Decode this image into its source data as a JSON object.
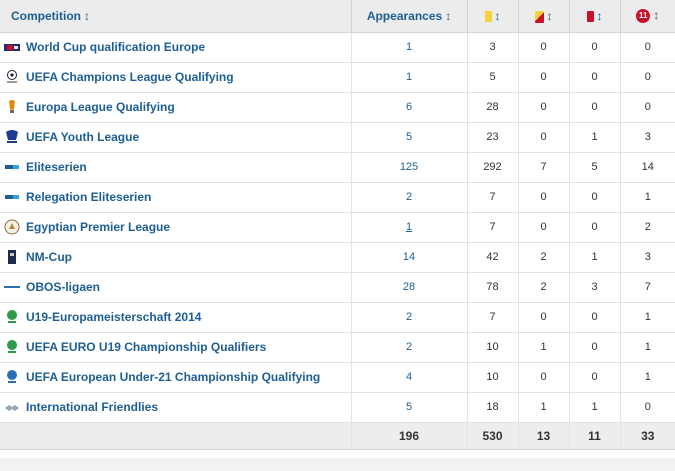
{
  "header": {
    "competition_label": "Competition",
    "appearances_label": "Appearances",
    "sort_glyph": "↕",
    "substitution_badge_text": "11",
    "icons": {
      "yellow": "yellow-card-icon",
      "yellow_red": "yellow-red-card-icon",
      "red": "red-card-icon",
      "substitution": "substitution-icon"
    }
  },
  "rows": [
    {
      "competition": "World Cup qualification Europe",
      "logo": "world-cup-qualification-logo",
      "appearances": "1",
      "yellow": "3",
      "yellow_red": "0",
      "red": "0",
      "subs": "0"
    },
    {
      "competition": "UEFA Champions League Qualifying",
      "logo": "champions-league-logo",
      "appearances": "1",
      "yellow": "5",
      "yellow_red": "0",
      "red": "0",
      "subs": "0"
    },
    {
      "competition": "Europa League Qualifying",
      "logo": "europa-league-logo",
      "appearances": "6",
      "yellow": "28",
      "yellow_red": "0",
      "red": "0",
      "subs": "0"
    },
    {
      "competition": "UEFA Youth League",
      "logo": "uefa-youth-league-logo",
      "appearances": "5",
      "yellow": "23",
      "yellow_red": "0",
      "red": "1",
      "subs": "3"
    },
    {
      "competition": "Eliteserien",
      "logo": "eliteserien-logo",
      "appearances": "125",
      "yellow": "292",
      "yellow_red": "7",
      "red": "5",
      "subs": "14"
    },
    {
      "competition": "Relegation Eliteserien",
      "logo": "relegation-eliteserien-logo",
      "appearances": "2",
      "yellow": "7",
      "yellow_red": "0",
      "red": "0",
      "subs": "1"
    },
    {
      "competition": "Egyptian Premier League",
      "logo": "egyptian-premier-league-logo",
      "appearances": "1",
      "yellow": "7",
      "yellow_red": "0",
      "red": "0",
      "subs": "2",
      "underlined": true
    },
    {
      "competition": "NM-Cup",
      "logo": "nm-cup-logo",
      "appearances": "14",
      "yellow": "42",
      "yellow_red": "2",
      "red": "1",
      "subs": "3"
    },
    {
      "competition": "OBOS-ligaen",
      "logo": "obos-ligaen-logo",
      "appearances": "28",
      "yellow": "78",
      "yellow_red": "2",
      "red": "3",
      "subs": "7"
    },
    {
      "competition": "U19-Europameisterschaft 2014",
      "logo": "u19-euro-championship-logo",
      "appearances": "2",
      "yellow": "7",
      "yellow_red": "0",
      "red": "0",
      "subs": "1"
    },
    {
      "competition": "UEFA EURO U19 Championship Qualifiers",
      "logo": "u19-qualifiers-logo",
      "appearances": "2",
      "yellow": "10",
      "yellow_red": "1",
      "red": "0",
      "subs": "1"
    },
    {
      "competition": "UEFA European Under-21 Championship Qualifying",
      "logo": "u21-qualifying-logo",
      "appearances": "4",
      "yellow": "10",
      "yellow_red": "0",
      "red": "0",
      "subs": "1"
    },
    {
      "competition": "International Friendlies",
      "logo": "international-friendlies-logo",
      "appearances": "5",
      "yellow": "18",
      "yellow_red": "1",
      "red": "1",
      "subs": "0"
    }
  ],
  "totals": {
    "appearances": "196",
    "yellow": "530",
    "yellow_red": "13",
    "red": "11",
    "subs": "33"
  },
  "colors": {
    "link": "#1d5f94",
    "header_bg": "#ececec",
    "yellow_card": "#f7d23e",
    "red_card": "#c8102e"
  }
}
